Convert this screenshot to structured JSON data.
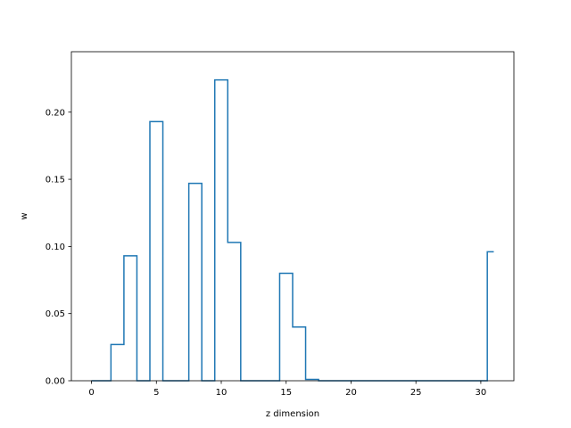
{
  "chart_data": {
    "type": "line",
    "step": "mid",
    "title": "",
    "xlabel": "z dimension",
    "ylabel": "w",
    "xlim": [
      -1.55,
      32.55
    ],
    "ylim": [
      0.0,
      0.245
    ],
    "grid": false,
    "line_color": "#1f77b4",
    "x": [
      0,
      1,
      2,
      3,
      4,
      5,
      6,
      7,
      8,
      9,
      10,
      11,
      12,
      13,
      14,
      15,
      16,
      17,
      18,
      19,
      20,
      21,
      22,
      23,
      24,
      25,
      26,
      27,
      28,
      29,
      30,
      31
    ],
    "values": [
      0.0,
      0.0,
      0.027,
      0.093,
      0.0,
      0.193,
      0.0,
      0.0,
      0.147,
      0.0,
      0.224,
      0.103,
      0.0,
      0.0,
      0.0,
      0.08,
      0.04,
      0.001,
      0.0,
      0.0,
      0.0,
      0.0,
      0.0,
      0.0,
      0.0,
      0.0,
      0.0,
      0.0,
      0.0,
      0.0,
      0.0,
      0.096
    ],
    "x_ticks": [
      0,
      5,
      10,
      15,
      20,
      25,
      30
    ],
    "x_tick_labels": [
      "0",
      "5",
      "10",
      "15",
      "20",
      "25",
      "30"
    ],
    "y_ticks": [
      0.0,
      0.05,
      0.1,
      0.15,
      0.2
    ],
    "y_tick_labels": [
      "0.00",
      "0.05",
      "0.10",
      "0.15",
      "0.20"
    ]
  }
}
